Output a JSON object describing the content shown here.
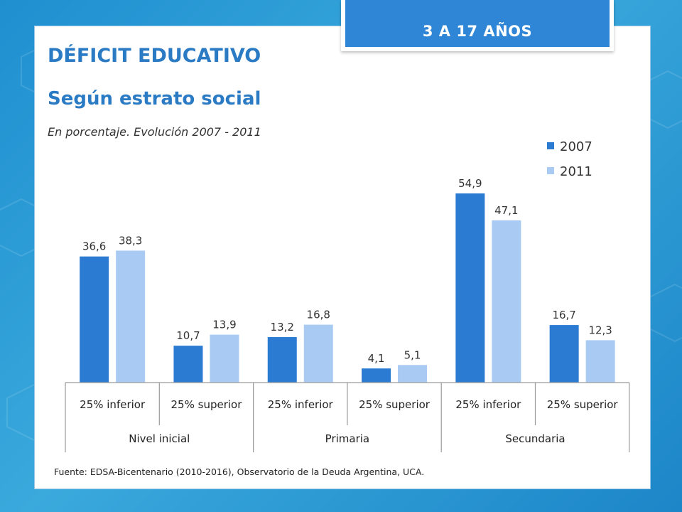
{
  "header": {
    "badge": "3 A 17 AÑOS",
    "title": "DÉFICIT EDUCATIVO",
    "subtitle": "Según estrato social",
    "note": "En porcentaje. Evolución 2007 - 2011"
  },
  "footer": {
    "source": "Fuente: EDSA-Bicentenario (2010-2016), Observatorio de la Deuda Argentina, UCA."
  },
  "colors": {
    "title": "#2a7ac4",
    "badge_bg": "#2f86d6",
    "series_2007": "#2b7bd2",
    "series_2011": "#a9cbf3"
  },
  "chart_data": {
    "type": "bar",
    "title": "",
    "legend_position": "top-right",
    "grid": false,
    "ylim": [
      0,
      60
    ],
    "categories": [
      "25% inferior",
      "25% superior",
      "25% inferior",
      "25% superior",
      "25% inferior",
      "25% superior"
    ],
    "groups": [
      {
        "label": "Nivel inicial",
        "categories": [
          0,
          1
        ]
      },
      {
        "label": "Primaria",
        "categories": [
          2,
          3
        ]
      },
      {
        "label": "Secundaria",
        "categories": [
          4,
          5
        ]
      }
    ],
    "series": [
      {
        "name": "2007",
        "color": "#2b7bd2",
        "values": [
          36.6,
          10.7,
          13.2,
          4.1,
          54.9,
          16.7
        ],
        "labels": [
          "36,6",
          "10,7",
          "13,2",
          "4,1",
          "54,9",
          "16,7"
        ]
      },
      {
        "name": "2011",
        "color": "#a9cbf3",
        "values": [
          38.3,
          13.9,
          16.8,
          5.1,
          47.1,
          12.3
        ],
        "labels": [
          "38,3",
          "13,9",
          "16,8",
          "5,1",
          "47,1",
          "12,3"
        ]
      }
    ]
  }
}
